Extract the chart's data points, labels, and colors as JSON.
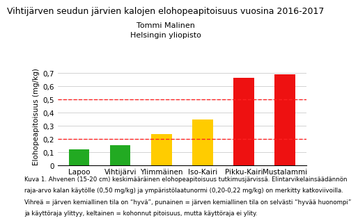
{
  "title": "Vihtijärven seudun järvien kalojen elohopeapitoisuus vuosina 2016-2017",
  "subtitle1": "Tommi Malinen",
  "subtitle2": "Helsingin yliopisto",
  "categories": [
    "Lapoo",
    "Vihtijärvi",
    "Ylimmäinen",
    "Iso-Kairi",
    "Pikku-Kairi",
    "Mustalammi"
  ],
  "values": [
    0.12,
    0.15,
    0.235,
    0.345,
    0.665,
    0.69
  ],
  "bar_colors": [
    "#22aa22",
    "#22aa22",
    "#ffcc00",
    "#ffcc00",
    "#ee1111",
    "#ee1111"
  ],
  "dashed_lines": [
    0.5,
    0.2
  ],
  "dashed_color": "#ff2222",
  "ylabel": "Elohopeapitoisuus (mg/kg)",
  "ylim": [
    0,
    0.75
  ],
  "yticks": [
    0,
    0.1,
    0.2,
    0.3,
    0.4,
    0.5,
    0.6,
    0.7
  ],
  "ytick_labels": [
    "0",
    "0,1",
    "0,2",
    "0,3",
    "0,4",
    "0,5",
    "0,6",
    "0,7"
  ],
  "background_color": "#ffffff",
  "title_fontsize": 9.0,
  "subtitle_fontsize": 8.0,
  "ylabel_fontsize": 7.5,
  "xtick_fontsize": 7.5,
  "ytick_fontsize": 7.5,
  "caption_fontsize": 6.2,
  "caption_line1": "Kuva 1. Ahvenen (15-20 cm) keskimääräinen elohopeapitoisuus tutkimusjärvissä. Elintarvikelainsäädännön",
  "caption_line2": "raja-arvo kalan käytölle (0,50 mg/kg) ja ympäristölaatunormi (0,20-0,22 mg/kg) on merkitty katkoviivoilla.",
  "caption_line3": "Vihreä = järven kemiallinen tila on “hyvä”, punainen = järven kemiallinen tila on selvästi “hyvää huonompi”",
  "caption_line4": "ja käyttöraja ylittyy, keltainen = kohonnut pitoisuus, mutta käyttöraja ei ylity."
}
